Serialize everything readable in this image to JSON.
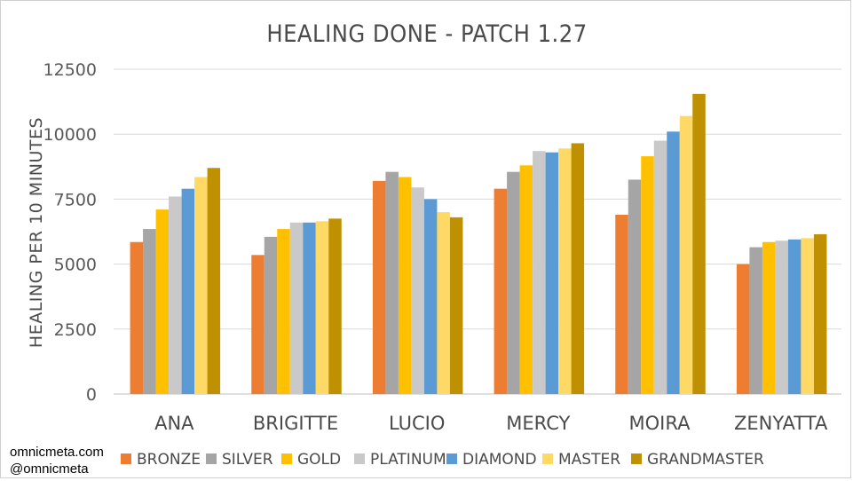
{
  "credits": {
    "site": "omnicmeta.com",
    "handle": "@omnicmeta"
  },
  "chart_data": {
    "type": "bar",
    "title": "HEALING DONE - PATCH 1.27",
    "xlabel": "",
    "ylabel": "HEALING PER 10 MINUTES",
    "ylim": [
      0,
      12500
    ],
    "yticks": [
      0,
      2500,
      5000,
      7500,
      10000,
      12500
    ],
    "ytick_labels": [
      "0",
      "2500",
      "5000",
      "7500",
      "10000",
      "12500"
    ],
    "grid": true,
    "legend_position": "bottom",
    "categories": [
      "ANA",
      "BRIGITTE",
      "LUCIO",
      "MERCY",
      "MOIRA",
      "ZENYATTA"
    ],
    "series": [
      {
        "name": "BRONZE",
        "color": "#ED7D31",
        "values": [
          5850,
          5350,
          8200,
          7900,
          6900,
          5000
        ]
      },
      {
        "name": "SILVER",
        "color": "#A5A5A5",
        "values": [
          6350,
          6050,
          8550,
          8550,
          8250,
          5650
        ]
      },
      {
        "name": "GOLD",
        "color": "#FFC000",
        "values": [
          7100,
          6350,
          8350,
          8800,
          9150,
          5850
        ]
      },
      {
        "name": "PLATINUM",
        "color": "#C9C9C9",
        "values": [
          7600,
          6600,
          7950,
          9350,
          9750,
          5900
        ]
      },
      {
        "name": "DIAMOND",
        "color": "#5B9BD5",
        "values": [
          7900,
          6600,
          7500,
          9300,
          10100,
          5950
        ]
      },
      {
        "name": "MASTER",
        "color": "#FFD966",
        "values": [
          8350,
          6650,
          7000,
          9450,
          10700,
          6000
        ]
      },
      {
        "name": "GRANDMASTER",
        "color": "#BF9000",
        "values": [
          8700,
          6750,
          6800,
          9650,
          11550,
          6150
        ]
      }
    ]
  }
}
